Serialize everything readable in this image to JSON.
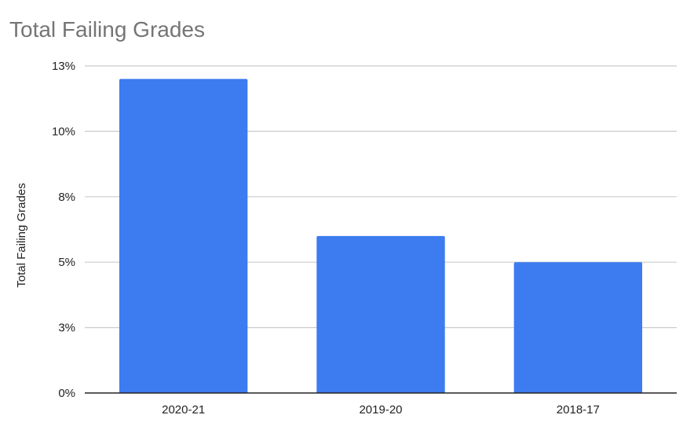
{
  "chart_data": {
    "type": "bar",
    "title": "Total Failing Grades",
    "xlabel": "",
    "ylabel": "Total Failing Grades",
    "categories": [
      "2020-21",
      "2019-20",
      "2018-17"
    ],
    "series": [
      {
        "values": [
          12.0,
          6.0,
          5.0
        ]
      }
    ],
    "ylim": [
      0,
      12.5
    ],
    "y_ticks": [
      0,
      2.5,
      5,
      7.5,
      10,
      12.5
    ],
    "y_tick_labels": [
      "0%",
      "3%",
      "5%",
      "8%",
      "10%",
      "13%"
    ],
    "grid": true,
    "bar_color": "#3c7bf0",
    "gridline_color": "#cccccc",
    "axis_color": "#222222"
  }
}
